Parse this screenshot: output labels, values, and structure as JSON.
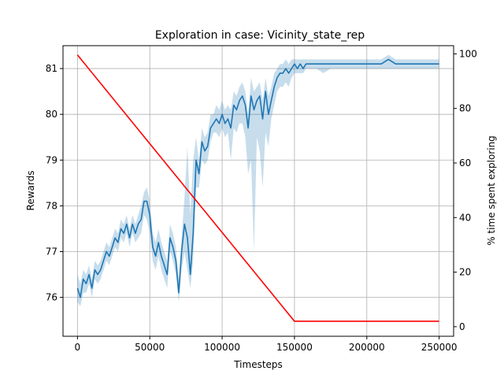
{
  "chart_data": {
    "type": "line",
    "title": "Exploration in case: Vicinity_state_rep",
    "xlabel": "Timesteps",
    "ylabel": "Rewards",
    "y2label": "% time spent exploring",
    "xlim": [
      -10000,
      260000
    ],
    "ylim": [
      75.15,
      81.5
    ],
    "y2lim": [
      -3.5,
      103
    ],
    "grid": true,
    "x_ticks": [
      0,
      50000,
      100000,
      150000,
      200000,
      250000
    ],
    "x_tick_labels": [
      "0",
      "50000",
      "100000",
      "150000",
      "200000",
      "250000"
    ],
    "y_ticks": [
      76,
      77,
      78,
      79,
      80,
      81
    ],
    "y_tick_labels": [
      "76",
      "77",
      "78",
      "79",
      "80",
      "81"
    ],
    "y2_ticks": [
      0,
      20,
      40,
      60,
      80,
      100
    ],
    "y2_tick_labels": [
      "0",
      "20",
      "40",
      "60",
      "80",
      "100"
    ],
    "colors": {
      "rewards_line": "#1f77b4",
      "rewards_band": "#1f77b4",
      "exploration_line": "#ff0000",
      "grid": "#b0b0b0"
    },
    "series": [
      {
        "axis": "left",
        "style": "line-with-band",
        "x": [
          0,
          2000,
          4000,
          6000,
          8000,
          10000,
          12000,
          14000,
          16000,
          18000,
          20000,
          22000,
          24000,
          26000,
          28000,
          30000,
          32000,
          34000,
          36000,
          38000,
          40000,
          42000,
          44000,
          46000,
          48000,
          50000,
          52000,
          54000,
          56000,
          58000,
          60000,
          62000,
          64000,
          66000,
          68000,
          70000,
          72000,
          74000,
          76000,
          78000,
          80000,
          82000,
          84000,
          86000,
          88000,
          90000,
          92000,
          94000,
          96000,
          98000,
          100000,
          102000,
          104000,
          106000,
          108000,
          110000,
          112000,
          114000,
          116000,
          118000,
          120000,
          122000,
          124000,
          126000,
          128000,
          130000,
          132000,
          134000,
          136000,
          138000,
          140000,
          142000,
          144000,
          146000,
          148000,
          150000,
          152000,
          154000,
          156000,
          158000,
          160000,
          165000,
          170000,
          175000,
          180000,
          185000,
          190000,
          195000,
          200000,
          205000,
          210000,
          215000,
          220000,
          225000,
          230000,
          235000,
          240000,
          245000,
          250000
        ],
        "y": [
          76.2,
          76.0,
          76.4,
          76.3,
          76.5,
          76.2,
          76.6,
          76.5,
          76.6,
          76.8,
          77.0,
          76.9,
          77.1,
          77.3,
          77.2,
          77.5,
          77.4,
          77.6,
          77.3,
          77.6,
          77.4,
          77.6,
          77.7,
          78.1,
          78.1,
          77.8,
          77.1,
          76.9,
          77.2,
          76.9,
          76.7,
          76.5,
          77.3,
          77.1,
          76.8,
          76.1,
          77.0,
          77.6,
          77.3,
          76.5,
          77.4,
          79.0,
          78.7,
          79.4,
          79.2,
          79.3,
          79.7,
          79.8,
          79.9,
          79.8,
          80.0,
          79.8,
          79.9,
          79.7,
          80.2,
          80.1,
          80.3,
          80.4,
          80.2,
          79.7,
          80.4,
          80.1,
          80.3,
          80.4,
          79.9,
          80.5,
          80.0,
          80.3,
          80.6,
          80.8,
          80.9,
          80.9,
          81.0,
          80.9,
          81.0,
          81.1,
          81.0,
          81.1,
          81.0,
          81.1,
          81.1,
          81.1,
          81.1,
          81.1,
          81.1,
          81.1,
          81.1,
          81.1,
          81.1,
          81.1,
          81.1,
          81.2,
          81.1,
          81.1,
          81.1,
          81.1,
          81.1,
          81.1,
          81.1
        ],
        "y_lower": [
          75.9,
          75.8,
          76.1,
          76.1,
          76.3,
          76.0,
          76.4,
          76.3,
          76.4,
          76.6,
          76.8,
          76.7,
          76.9,
          77.1,
          77.0,
          77.3,
          77.2,
          77.4,
          77.1,
          77.4,
          77.2,
          77.3,
          77.4,
          77.8,
          77.7,
          77.4,
          76.8,
          76.6,
          76.9,
          76.6,
          76.4,
          76.2,
          77.0,
          76.8,
          76.5,
          75.9,
          76.6,
          77.0,
          76.6,
          76.2,
          76.8,
          78.4,
          78.4,
          79.0,
          78.9,
          79.0,
          79.4,
          79.6,
          79.6,
          79.5,
          79.7,
          79.5,
          79.6,
          79.0,
          79.7,
          79.6,
          79.8,
          79.8,
          79.5,
          78.7,
          79.0,
          77.0,
          79.5,
          79.2,
          78.4,
          79.6,
          79.3,
          79.9,
          80.2,
          80.5,
          80.6,
          80.6,
          80.7,
          80.6,
          80.8,
          80.9,
          80.9,
          80.9,
          80.9,
          81.0,
          81.0,
          81.0,
          80.9,
          81.0,
          81.0,
          81.0,
          81.0,
          81.0,
          81.0,
          81.0,
          81.0,
          81.0,
          81.0,
          81.0,
          81.0,
          81.0,
          81.0,
          81.0,
          81.0
        ],
        "y_upper": [
          76.5,
          76.3,
          76.6,
          76.5,
          76.7,
          76.4,
          76.8,
          76.7,
          76.8,
          77.0,
          77.2,
          77.1,
          77.3,
          77.5,
          77.4,
          77.7,
          77.6,
          77.8,
          77.5,
          77.8,
          77.6,
          77.8,
          78.0,
          78.3,
          78.4,
          78.1,
          77.4,
          77.2,
          77.5,
          77.2,
          77.0,
          76.8,
          77.6,
          77.4,
          77.1,
          76.4,
          77.3,
          78.2,
          79.3,
          77.8,
          79.0,
          79.5,
          79.0,
          79.7,
          79.5,
          79.6,
          80.0,
          80.0,
          80.2,
          80.1,
          80.3,
          80.1,
          80.2,
          80.1,
          80.5,
          80.4,
          80.6,
          80.7,
          80.5,
          80.0,
          80.8,
          80.5,
          80.6,
          80.7,
          80.3,
          80.8,
          80.4,
          80.6,
          80.9,
          81.0,
          81.1,
          81.1,
          81.2,
          81.1,
          81.2,
          81.2,
          81.2,
          81.2,
          81.2,
          81.2,
          81.2,
          81.2,
          81.2,
          81.2,
          81.2,
          81.2,
          81.2,
          81.2,
          81.2,
          81.2,
          81.2,
          81.3,
          81.2,
          81.2,
          81.2,
          81.2,
          81.2,
          81.2,
          81.2
        ]
      },
      {
        "axis": "right",
        "style": "line",
        "x": [
          0,
          150000,
          250000
        ],
        "y": [
          99.6,
          2,
          2
        ]
      }
    ]
  }
}
